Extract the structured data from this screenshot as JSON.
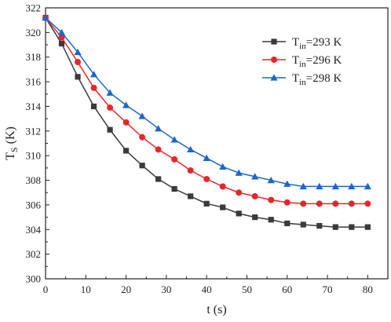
{
  "chart_data": {
    "type": "line",
    "xlabel": "t (s)",
    "ylabel": {
      "main": "T",
      "sub": "S",
      "unit": " (K)"
    },
    "xlim": [
      0,
      85
    ],
    "ylim": [
      300,
      322
    ],
    "x_ticks": [
      0,
      10,
      20,
      30,
      40,
      50,
      60,
      70,
      80
    ],
    "y_ticks": [
      300,
      302,
      304,
      306,
      308,
      310,
      312,
      314,
      316,
      318,
      320,
      322
    ],
    "grid": false,
    "legend_position": "top-right",
    "x": [
      0,
      4,
      8,
      12,
      16,
      20,
      24,
      28,
      32,
      36,
      40,
      44,
      48,
      52,
      56,
      60,
      64,
      68,
      72,
      76,
      80
    ],
    "series": [
      {
        "name": {
          "main": "T",
          "sub": "in",
          "rest": "=293 K"
        },
        "marker": "square",
        "color": "#3a3a3a",
        "values": [
          321.2,
          319.1,
          316.4,
          314.0,
          312.1,
          310.4,
          309.2,
          308.1,
          307.3,
          306.7,
          306.1,
          305.8,
          305.3,
          305.0,
          304.8,
          304.5,
          304.4,
          304.3,
          304.2,
          304.2,
          304.2
        ]
      },
      {
        "name": {
          "main": "T",
          "sub": "in",
          "rest": "=296 K"
        },
        "marker": "circle",
        "color": "#e8262a",
        "values": [
          321.2,
          319.6,
          317.6,
          315.5,
          313.9,
          312.7,
          311.5,
          310.5,
          309.7,
          308.8,
          308.1,
          307.5,
          307.0,
          306.7,
          306.4,
          306.2,
          306.1,
          306.1,
          306.1,
          306.1,
          306.1
        ]
      },
      {
        "name": {
          "main": "T",
          "sub": "in",
          "rest": "=298 K"
        },
        "marker": "triangle",
        "color": "#1a67c8",
        "values": [
          321.2,
          320.0,
          318.4,
          316.6,
          315.1,
          314.1,
          313.2,
          312.2,
          311.3,
          310.5,
          309.8,
          309.1,
          308.6,
          308.3,
          308.0,
          307.7,
          307.5,
          307.5,
          307.5,
          307.5,
          307.5
        ]
      }
    ]
  }
}
